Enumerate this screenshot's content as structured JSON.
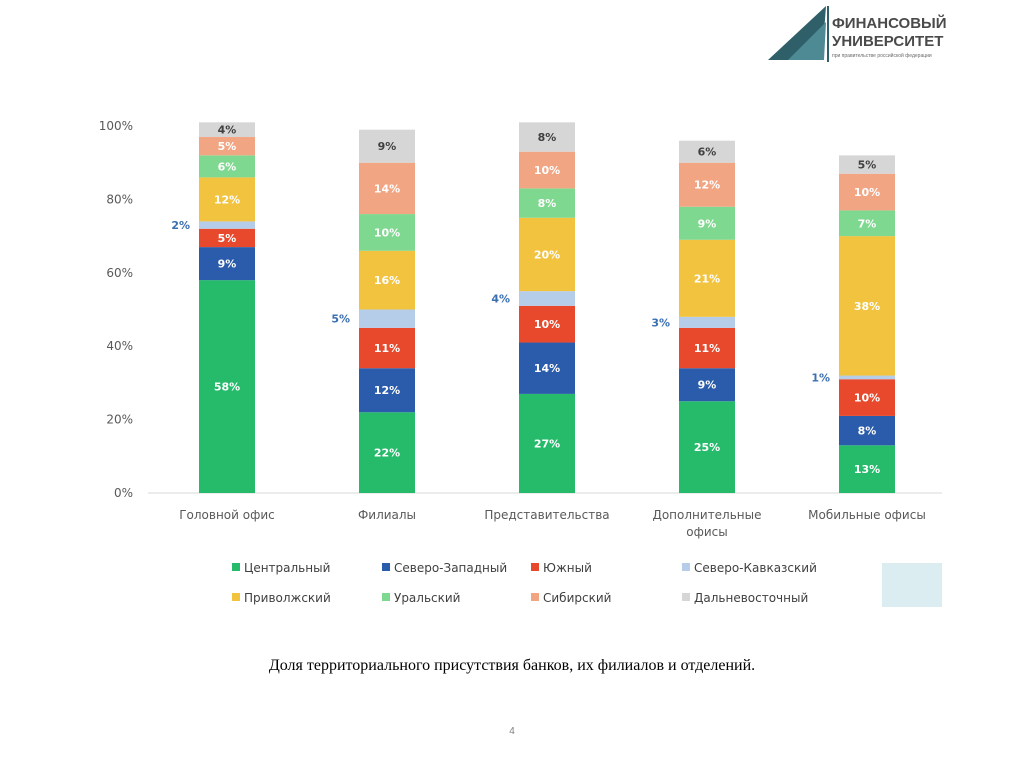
{
  "logo": {
    "line1": "ФИНАНСОВЫЙ",
    "line2": "УНИВЕРСИТЕТ",
    "line3": "при правительстве российской федерации"
  },
  "caption": "Доля территориального присутствия банков, их филиалов и отделений.",
  "page_number": "4",
  "colors": {
    "Центральный": "#25bb6b",
    "Северо-Западный": "#2a5cab",
    "Южный": "#e8492c",
    "Северо-Кавказский": "#b6cdea",
    "Приволжский": "#f1c33f",
    "Уральский": "#7fd88f",
    "Сибирский": "#f2a583",
    "Дальневосточный": "#d6d6d6"
  },
  "chart_data": {
    "type": "bar",
    "stacked": true,
    "categories": [
      "Головной офис",
      "Филиалы",
      "Представительства",
      "Дополнительные офисы",
      "Мобильные офисы"
    ],
    "category_lines": [
      [
        "Головной офис"
      ],
      [
        "Филиалы"
      ],
      [
        "Представительства"
      ],
      [
        "Дополнительные",
        "офисы"
      ],
      [
        "Мобильные офисы"
      ]
    ],
    "y_ticks": [
      "0%",
      "20%",
      "40%",
      "60%",
      "80%",
      "100%"
    ],
    "ylim": [
      0,
      100
    ],
    "series": [
      {
        "name": "Центральный",
        "values": [
          58,
          22,
          27,
          25,
          13
        ]
      },
      {
        "name": "Северо-Западный",
        "values": [
          9,
          12,
          14,
          9,
          8
        ]
      },
      {
        "name": "Южный",
        "values": [
          5,
          11,
          10,
          11,
          10
        ]
      },
      {
        "name": "Северо-Кавказский",
        "values": [
          2,
          5,
          4,
          3,
          1
        ]
      },
      {
        "name": "Приволжский",
        "values": [
          12,
          16,
          20,
          21,
          38
        ]
      },
      {
        "name": "Уральский",
        "values": [
          6,
          10,
          8,
          9,
          7
        ]
      },
      {
        "name": "Сибирский",
        "values": [
          5,
          14,
          10,
          12,
          10
        ]
      },
      {
        "name": "Дальневосточный",
        "values": [
          4,
          9,
          8,
          6,
          5
        ]
      }
    ],
    "outside_label_series": "Северо-Кавказский",
    "legend_position": "bottom",
    "legend_order": [
      "Центральный",
      "Северо-Западный",
      "Южный",
      "Северо-Кавказский",
      "Приволжский",
      "Уральский",
      "Сибирский",
      "Дальневосточный"
    ]
  }
}
